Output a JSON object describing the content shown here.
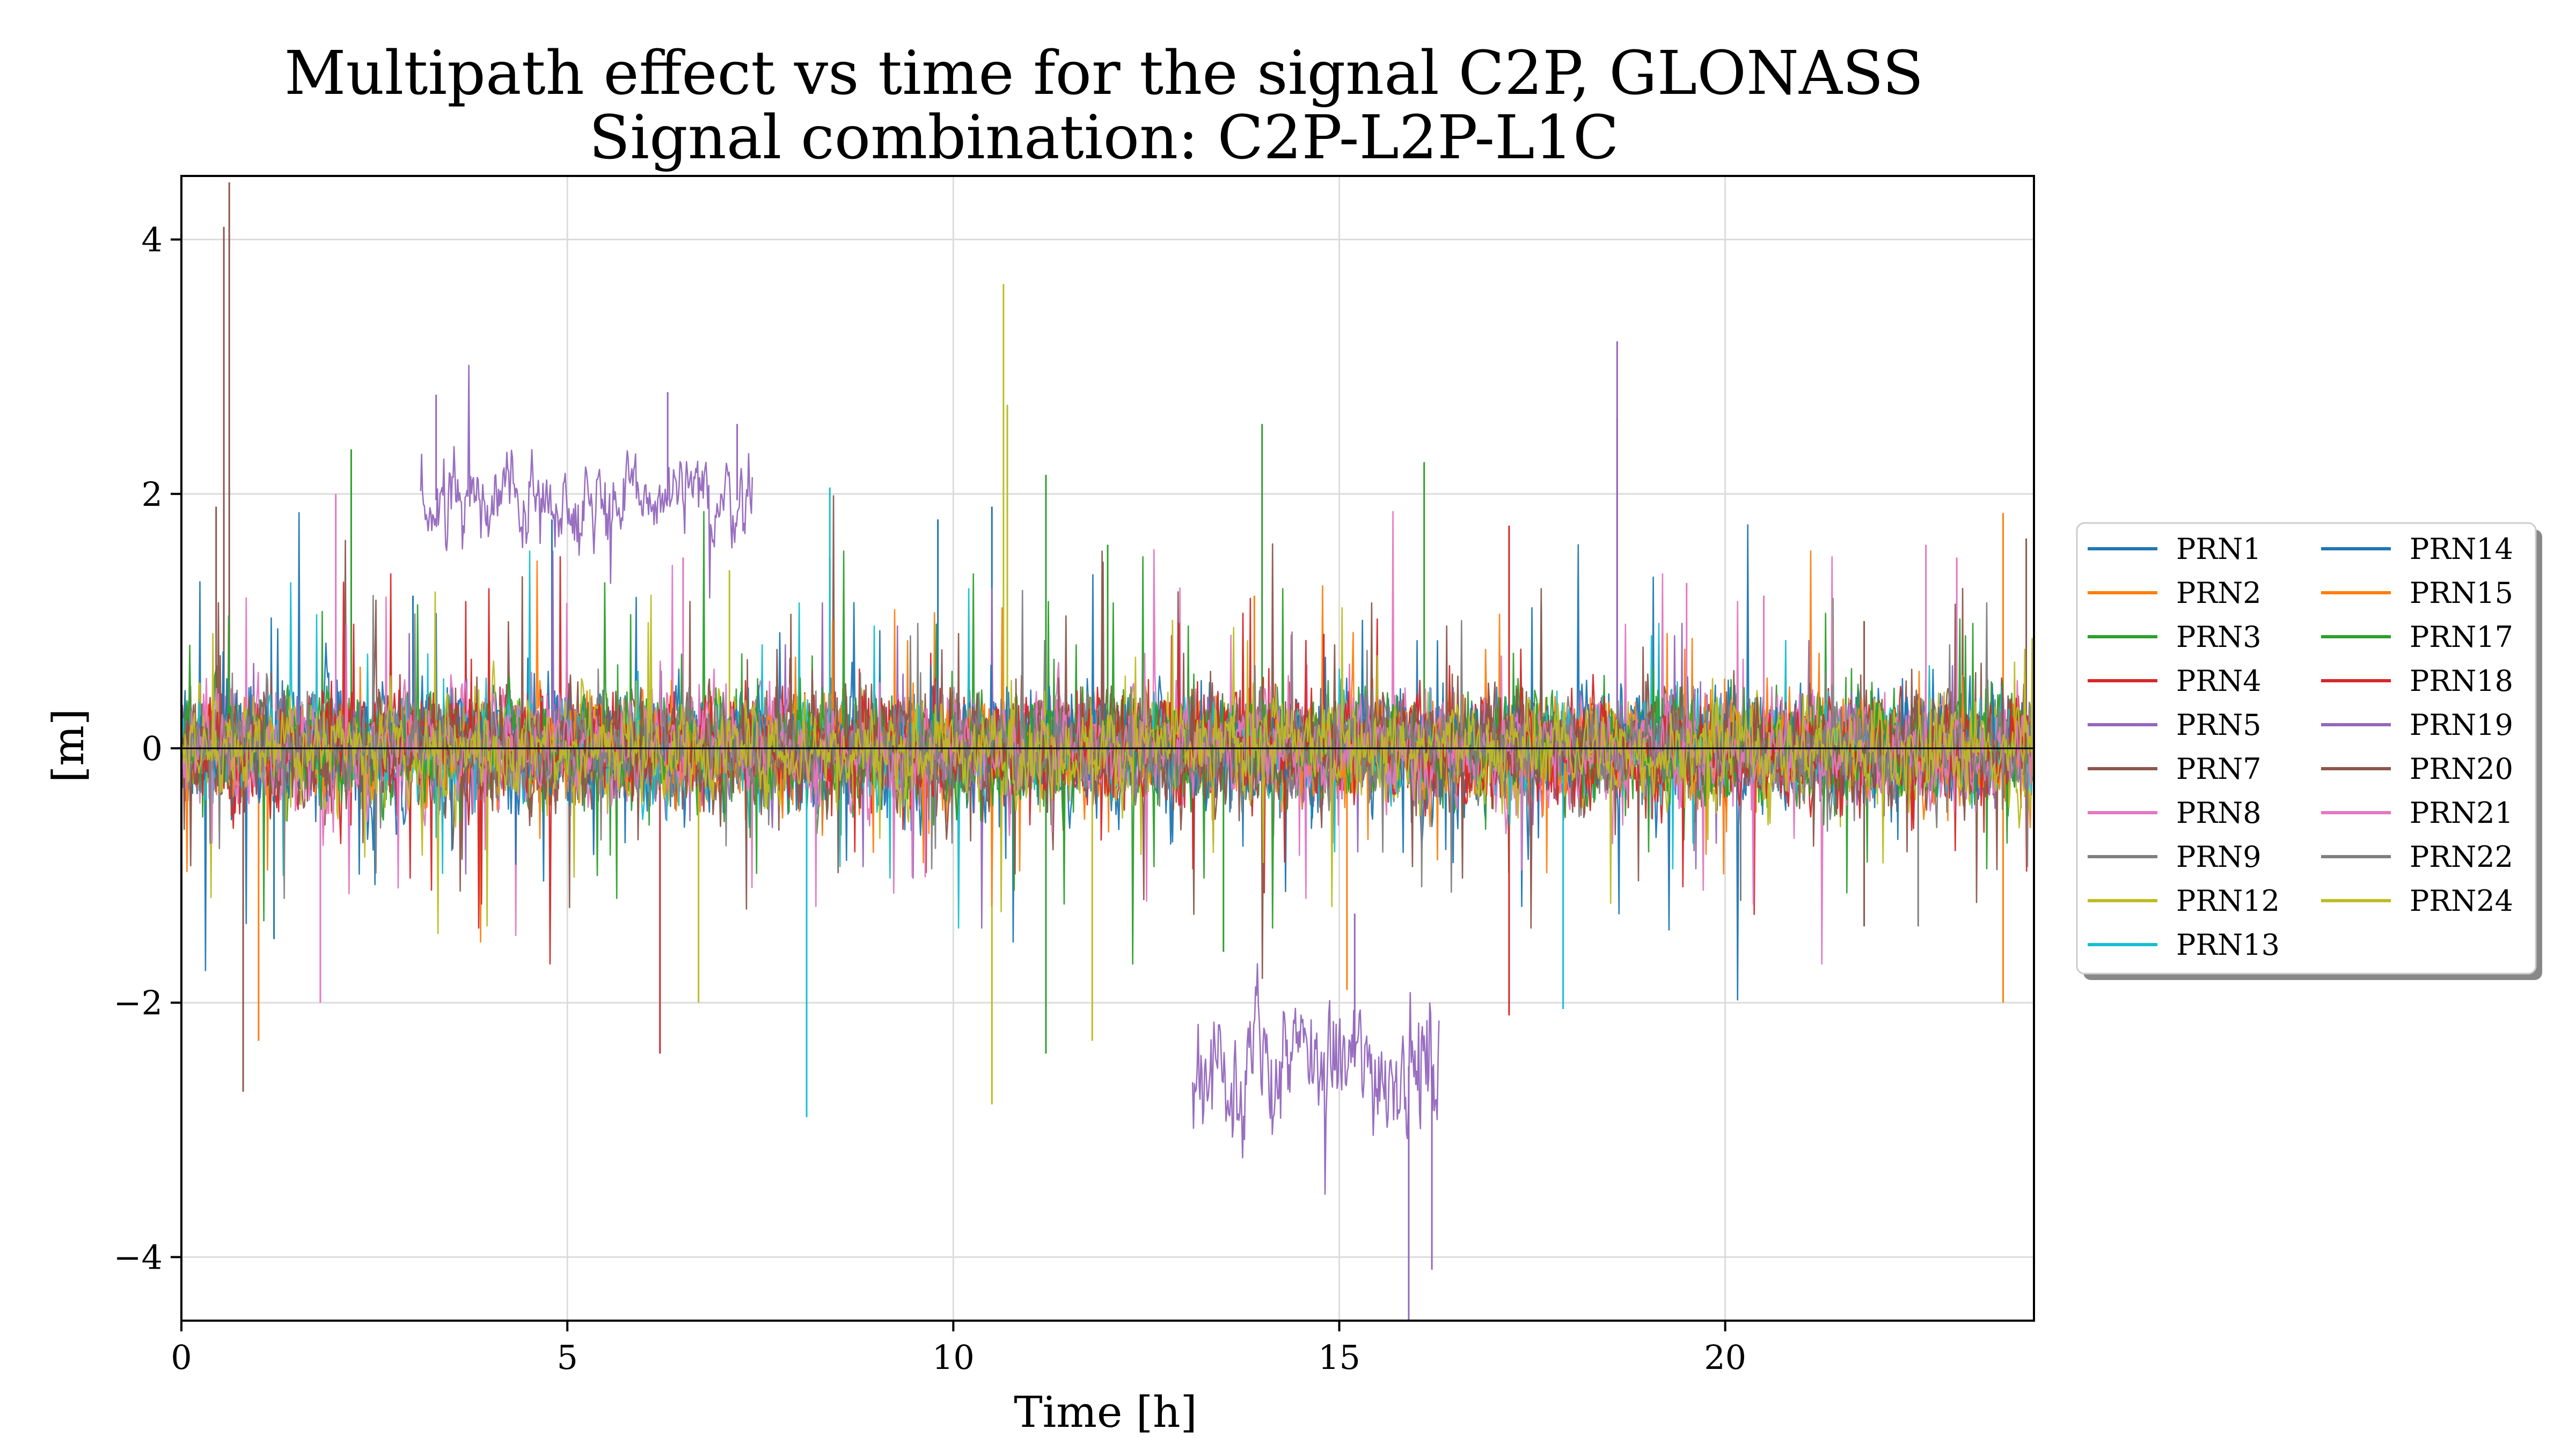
{
  "chart_data": {
    "type": "line",
    "title": "Multipath effect vs time for the signal C2P, GLONASS",
    "subtitle": "Signal combination: C2P-L2P-L1C",
    "xlabel": "Time [h]",
    "ylabel": "[m]",
    "xlim": [
      0,
      24
    ],
    "ylim": [
      -4.5,
      4.5
    ],
    "xticks": [
      0,
      5,
      10,
      15,
      20
    ],
    "yticks": [
      -4,
      -2,
      0,
      2,
      4
    ],
    "xtick_labels": [
      "0",
      "5",
      "10",
      "15",
      "20"
    ],
    "ytick_labels": [
      "−4",
      "−2",
      "0",
      "2",
      "4"
    ],
    "grid": true,
    "zero_line": true,
    "legend_position": "right, outside plot, 2 columns",
    "series": [
      {
        "name": "PRN1",
        "color": "#1f77b4",
        "segments": [
          {
            "x": [
              0.0,
              24.0
            ],
            "offset": 0.0,
            "noise": 0.35,
            "spikes": [
              [
                4.8,
                1.8
              ],
              [
                10.5,
                1.9
              ],
              [
                1.2,
                -1.5
              ]
            ]
          }
        ]
      },
      {
        "name": "PRN2",
        "color": "#ff7f0e",
        "segments": [
          {
            "x": [
              0.0,
              24.0
            ],
            "offset": 0.0,
            "noise": 0.25,
            "spikes": [
              [
                15.1,
                -1.9
              ],
              [
                23.6,
                1.85
              ],
              [
                23.6,
                -2.0
              ],
              [
                1.0,
                -2.3
              ]
            ]
          }
        ]
      },
      {
        "name": "PRN3",
        "color": "#2ca02c",
        "segments": [
          {
            "x": [
              0.0,
              24.0
            ],
            "offset": 0.0,
            "noise": 0.3,
            "spikes": [
              [
                2.2,
                2.35
              ],
              [
                14.0,
                2.55
              ],
              [
                16.1,
                2.25
              ],
              [
                11.2,
                -2.4
              ],
              [
                11.2,
                2.15
              ]
            ]
          }
        ]
      },
      {
        "name": "PRN4",
        "color": "#d62728",
        "segments": [
          {
            "x": [
              0.0,
              24.0
            ],
            "offset": 0.0,
            "noise": 0.3,
            "spikes": [
              [
                6.2,
                -2.4
              ],
              [
                17.2,
                1.75
              ],
              [
                17.2,
                -2.1
              ]
            ]
          }
        ]
      },
      {
        "name": "PRN5",
        "color": "#9467bd",
        "segments": [
          {
            "x": [
              0.0,
              24.0
            ],
            "offset": 0.0,
            "noise": 0.25,
            "spikes": [
              [
                18.6,
                3.2
              ],
              [
                18.6,
                2.6
              ]
            ]
          }
        ]
      },
      {
        "name": "PRN7",
        "color": "#8c564b",
        "segments": [
          {
            "x": [
              0.0,
              24.0
            ],
            "offset": 0.0,
            "noise": 0.32,
            "spikes": [
              [
                0.62,
                4.45
              ],
              [
                0.55,
                4.1
              ],
              [
                0.8,
                -2.7
              ],
              [
                0.45,
                1.9
              ],
              [
                21.8,
                1.0
              ],
              [
                8.4,
                1.5
              ]
            ]
          }
        ]
      },
      {
        "name": "PRN8",
        "color": "#e377c2",
        "segments": [
          {
            "x": [
              0.0,
              24.0
            ],
            "offset": 0.0,
            "noise": 0.3,
            "spikes": [
              [
                2.0,
                2.0
              ],
              [
                6.5,
                1.5
              ],
              [
                22.6,
                1.6
              ],
              [
                23.0,
                1.5
              ],
              [
                1.8,
                -2.0
              ]
            ]
          }
        ]
      },
      {
        "name": "PRN9",
        "color": "#7f7f7f",
        "segments": [
          {
            "x": [
              0.0,
              24.0
            ],
            "offset": 0.0,
            "noise": 0.25,
            "spikes": [
              [
                20.2,
                -1.2
              ],
              [
                22.5,
                -1.4
              ]
            ]
          }
        ]
      },
      {
        "name": "PRN12",
        "color": "#bcbd22",
        "segments": [
          {
            "x": [
              0.0,
              24.0
            ],
            "offset": 0.0,
            "noise": 0.28,
            "spikes": [
              [
                10.65,
                3.65
              ],
              [
                10.7,
                2.7
              ],
              [
                10.5,
                -2.8
              ],
              [
                6.7,
                -2.0
              ],
              [
                11.8,
                -2.3
              ],
              [
                7.1,
                1.4
              ]
            ]
          }
        ]
      },
      {
        "name": "PRN13",
        "color": "#17becf",
        "segments": [
          {
            "x": [
              0.0,
              24.0
            ],
            "offset": 0.0,
            "noise": 0.25,
            "spikes": [
              [
                8.1,
                -2.9
              ],
              [
                8.4,
                2.05
              ],
              [
                17.9,
                -2.05
              ]
            ]
          }
        ]
      },
      {
        "name": "PRN14",
        "color": "#1f77b4",
        "segments": [
          {
            "x": [
              0.0,
              24.0
            ],
            "offset": 0.0,
            "noise": 0.22,
            "spikes": [
              [
                3.0,
                1.2
              ],
              [
                9.8,
                1.8
              ]
            ]
          }
        ]
      },
      {
        "name": "PRN15",
        "color": "#ff7f0e",
        "segments": [
          {
            "x": [
              0.0,
              24.0
            ],
            "offset": 0.0,
            "noise": 0.22,
            "spikes": [
              [
                13.9,
                1.2
              ]
            ]
          }
        ]
      },
      {
        "name": "PRN17",
        "color": "#2ca02c",
        "segments": [
          {
            "x": [
              0.0,
              24.0
            ],
            "offset": 0.0,
            "noise": 0.25,
            "spikes": [
              [
                12.0,
                1.6
              ],
              [
                13.5,
                -1.6
              ]
            ]
          }
        ]
      },
      {
        "name": "PRN18",
        "color": "#d62728",
        "segments": [
          {
            "x": [
              0.0,
              24.0
            ],
            "offset": 0.0,
            "noise": 0.25,
            "spikes": [
              [
                14.8,
                0.9
              ]
            ]
          }
        ]
      },
      {
        "name": "PRN19",
        "color": "#9467bd",
        "segments": [
          {
            "x": [
              3.1,
              7.4
            ],
            "offset": 1.95,
            "noise": 0.22,
            "spikes": [
              [
                3.3,
                2.78
              ],
              [
                6.3,
                2.8
              ],
              [
                7.2,
                2.55
              ]
            ]
          },
          {
            "x": [
              13.1,
              16.3
            ],
            "offset": -2.5,
            "noise": 0.35,
            "spikes": [
              [
                15.9,
                -4.5
              ],
              [
                16.2,
                -4.1
              ],
              [
                15.2,
                -1.3
              ]
            ]
          }
        ]
      },
      {
        "name": "PRN20",
        "color": "#8c564b",
        "segments": [
          {
            "x": [
              0.0,
              24.0
            ],
            "offset": 0.0,
            "noise": 0.25,
            "spikes": [
              [
                21.8,
                -1.4
              ],
              [
                23.9,
                1.65
              ]
            ]
          }
        ]
      },
      {
        "name": "PRN21",
        "color": "#e377c2",
        "segments": [
          {
            "x": [
              0.0,
              24.0
            ],
            "offset": 0.0,
            "noise": 0.22,
            "spikes": [
              [
                19.5,
                1.3
              ],
              [
                20.5,
                1.2
              ]
            ]
          }
        ]
      },
      {
        "name": "PRN22",
        "color": "#7f7f7f",
        "segments": [
          {
            "x": [
              0.0,
              24.0
            ],
            "offset": 0.0,
            "noise": 0.2,
            "spikes": []
          }
        ]
      },
      {
        "name": "PRN24",
        "color": "#bcbd22",
        "segments": [
          {
            "x": [
              0.0,
              24.0
            ],
            "offset": 0.0,
            "noise": 0.22,
            "spikes": []
          }
        ]
      }
    ]
  }
}
